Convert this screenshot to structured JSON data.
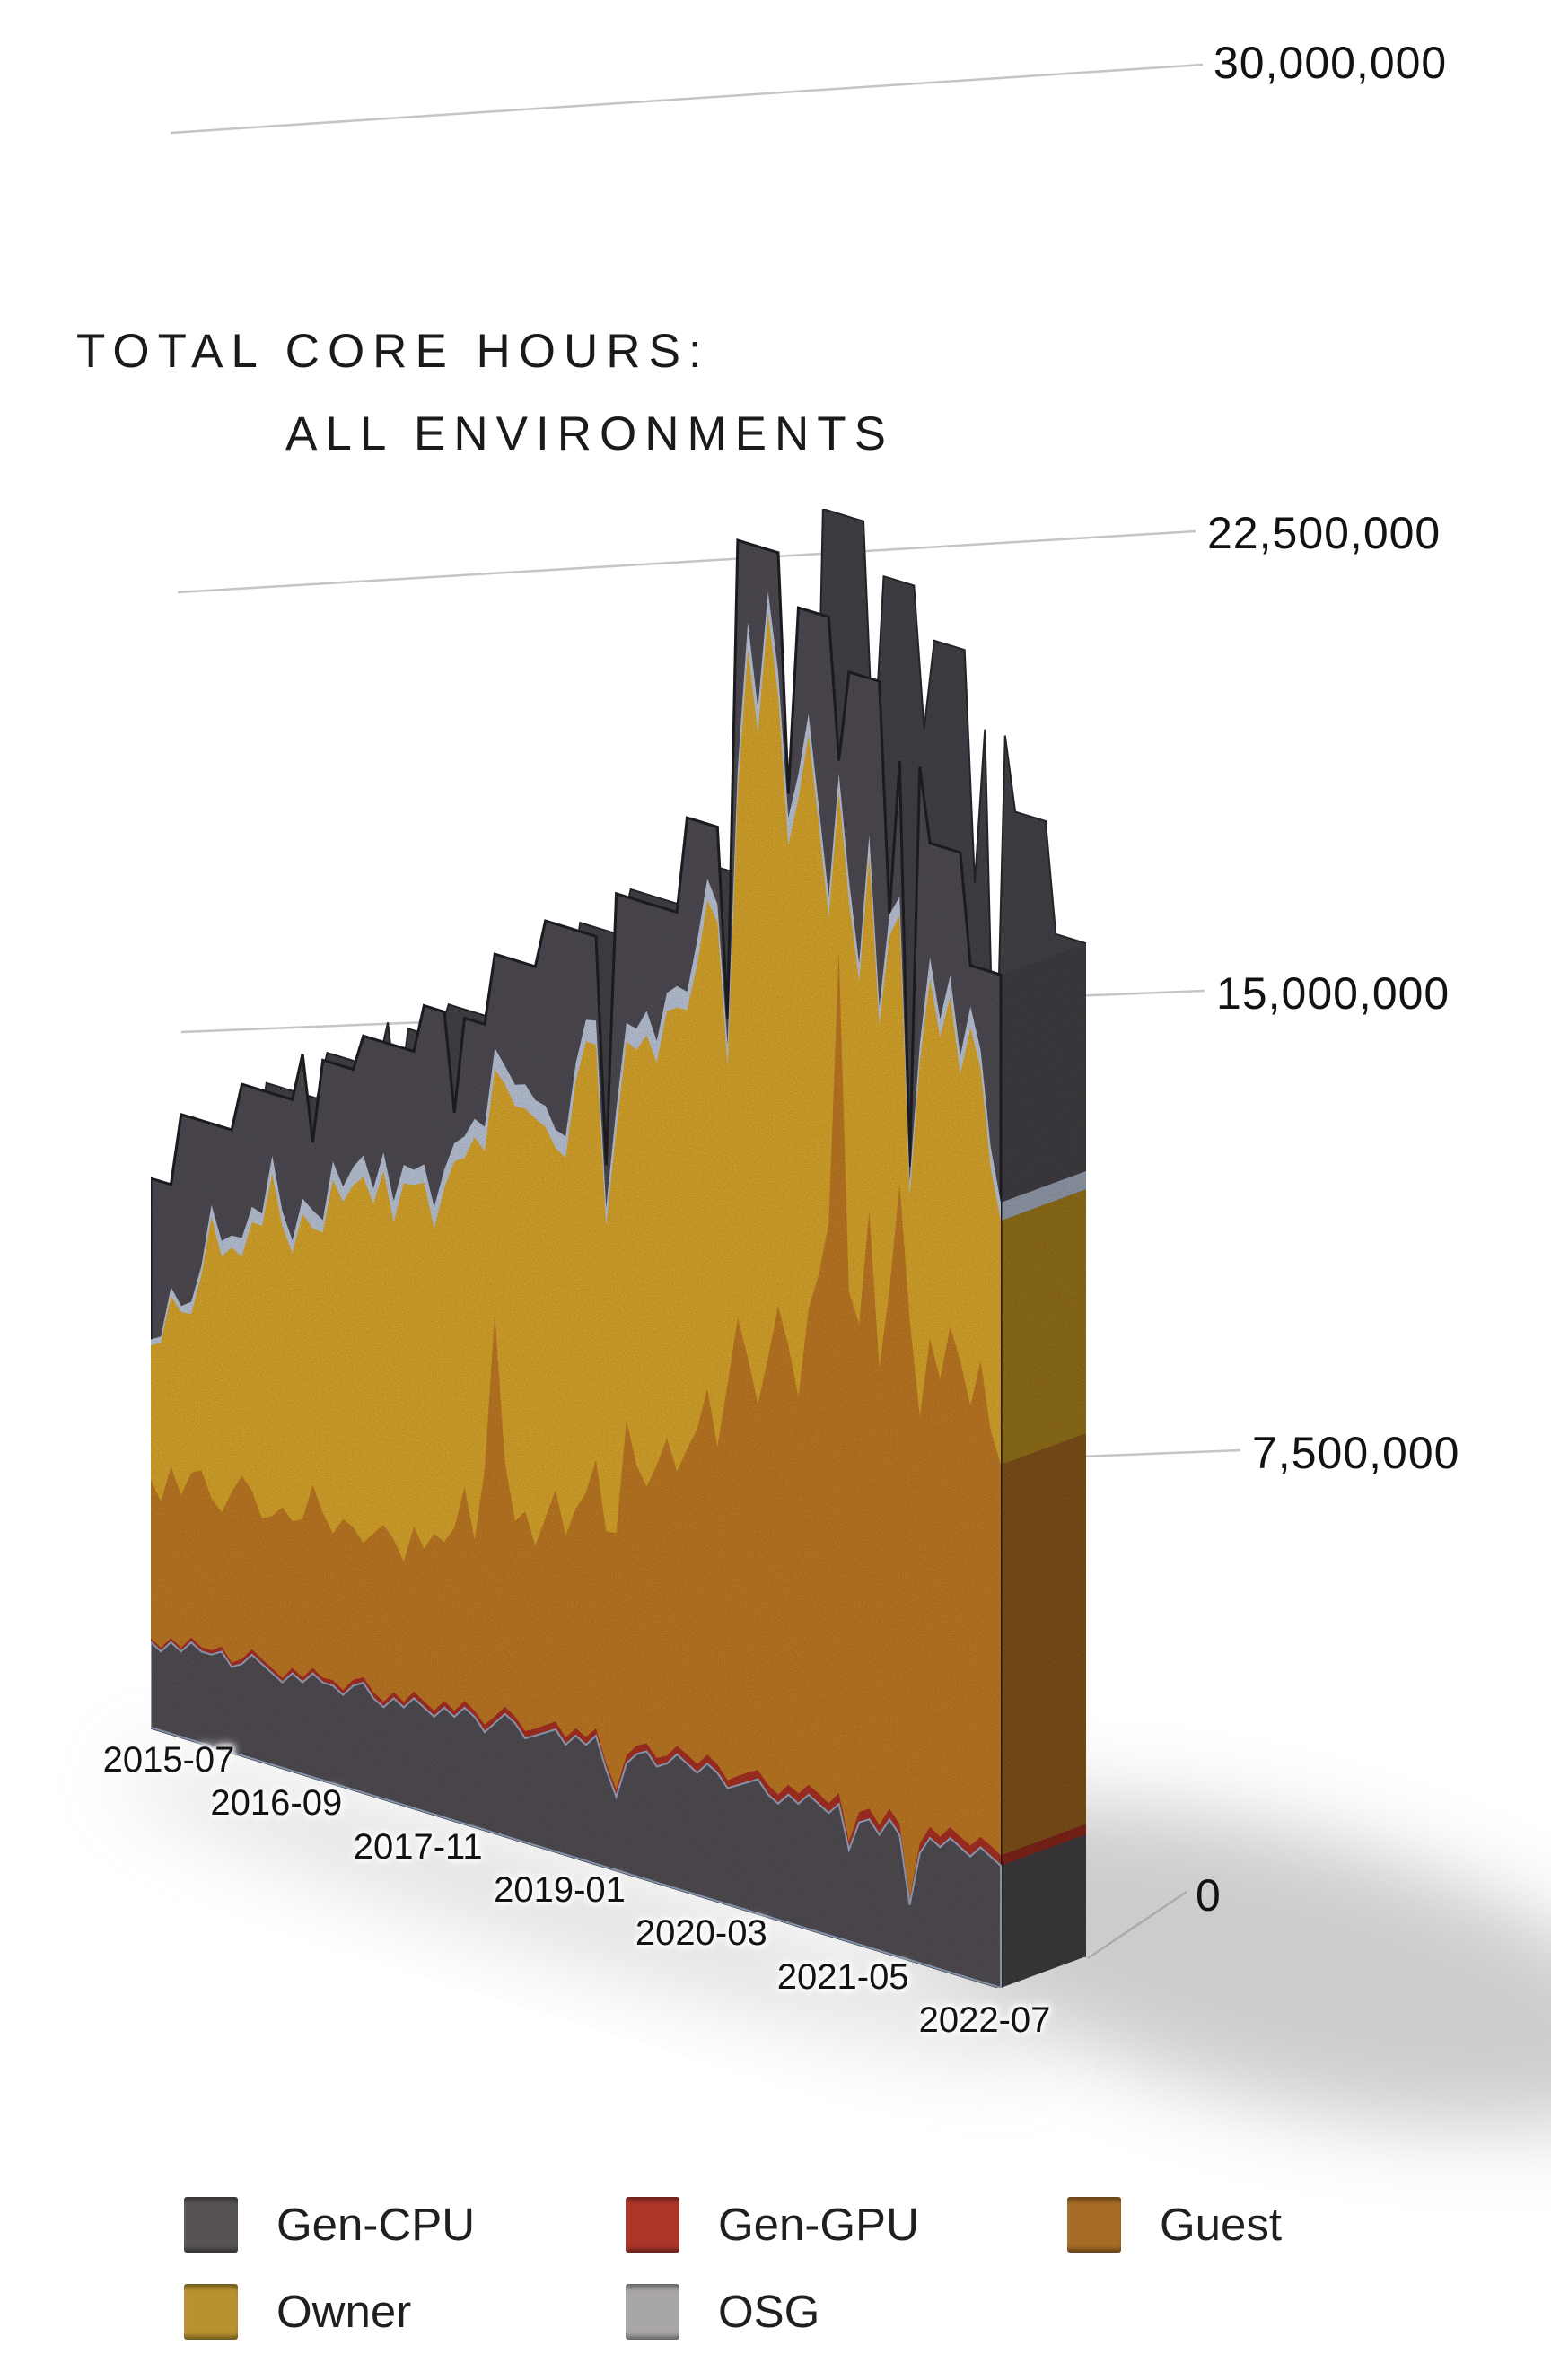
{
  "title": {
    "line1": "TOTAL CORE HOURS:",
    "line2": "ALL ENVIRONMENTS"
  },
  "y_axis": {
    "unit": "core hours",
    "tick_labels": [
      "30,000,000",
      "22,500,000",
      "15,000,000",
      "7,500,000",
      "0"
    ],
    "tick_values": [
      30000000,
      22500000,
      15000000,
      7500000,
      0
    ]
  },
  "x_axis": {
    "tick_labels": [
      "2015-07",
      "2016-09",
      "2017-11",
      "2019-01",
      "2020-03",
      "2021-05",
      "2022-07"
    ]
  },
  "legend": {
    "items": [
      {
        "label": "Gen-CPU",
        "color": "#565256"
      },
      {
        "label": "Gen-GPU",
        "color": "#AC352A"
      },
      {
        "label": "Guest",
        "color": "#A66C26"
      },
      {
        "label": "Owner",
        "color": "#B8922C"
      },
      {
        "label": "OSG",
        "color": "#A9A6A7"
      }
    ]
  },
  "chart_data": {
    "type": "area",
    "subtype": "stacked-3d-perspective",
    "title": "TOTAL CORE HOURS: ALL ENVIRONMENTS",
    "x_start": "2015-07",
    "x_end": "2022-07",
    "x_step_months": 1,
    "x_tick_labels": [
      "2015-07",
      "2016-09",
      "2017-11",
      "2019-01",
      "2020-03",
      "2021-05",
      "2022-07"
    ],
    "x_tick_month_index": [
      0,
      14,
      28,
      42,
      56,
      70,
      84
    ],
    "values_unit": "millions of core hours per month",
    "ylim": [
      0,
      30000000
    ],
    "y_ticks": [
      0,
      7500000,
      15000000,
      22500000,
      30000000
    ],
    "grid": "perspective gridlines, labels on right",
    "legend_position": "bottom-left, two rows",
    "stack_order_bottom_to_top": [
      "Gen-CPU",
      "Gen-GPU",
      "Guest",
      "Owner",
      "OSG"
    ],
    "series": [
      {
        "name": "Gen-CPU",
        "color": "#514E52",
        "values": [
          1.4,
          1.3,
          1.5,
          1.4,
          1.6,
          1.5,
          1.5,
          1.6,
          1.4,
          1.5,
          1.7,
          1.6,
          1.5,
          1.4,
          1.6,
          1.5,
          1.7,
          1.6,
          1.6,
          1.5,
          1.7,
          1.8,
          1.6,
          1.5,
          1.7,
          1.6,
          1.8,
          1.7,
          1.6,
          1.8,
          1.7,
          1.9,
          1.8,
          1.6,
          1.8,
          2.0,
          1.9,
          1.7,
          1.8,
          1.9,
          2.0,
          1.8,
          2.0,
          1.9,
          2.1,
          1.6,
          1.2,
          1.8,
          2.0,
          2.1,
          1.9,
          2.0,
          2.2,
          2.1,
          2.0,
          2.2,
          2.1,
          1.9,
          2.0,
          2.1,
          2.2,
          2.0,
          1.9,
          2.1,
          2.0,
          2.2,
          2.1,
          2.0,
          2.2,
          1.5,
          2.0,
          2.1,
          1.9,
          2.2,
          2.0,
          0.9,
          1.8,
          2.1,
          2.0,
          2.2,
          2.1,
          2.0,
          2.2,
          2.1,
          2.0
        ]
      },
      {
        "name": "Gen-GPU",
        "color": "#A63125",
        "values": [
          0.06,
          0.06,
          0.07,
          0.06,
          0.08,
          0.07,
          0.07,
          0.08,
          0.07,
          0.08,
          0.09,
          0.08,
          0.08,
          0.07,
          0.09,
          0.08,
          0.09,
          0.08,
          0.09,
          0.08,
          0.1,
          0.09,
          0.1,
          0.09,
          0.1,
          0.09,
          0.11,
          0.1,
          0.1,
          0.11,
          0.1,
          0.11,
          0.1,
          0.12,
          0.11,
          0.12,
          0.11,
          0.12,
          0.11,
          0.12,
          0.13,
          0.12,
          0.12,
          0.13,
          0.12,
          0.1,
          0.12,
          0.13,
          0.14,
          0.13,
          0.14,
          0.13,
          0.14,
          0.15,
          0.14,
          0.15,
          0.14,
          0.13,
          0.15,
          0.16,
          0.15,
          0.16,
          0.15,
          0.16,
          0.17,
          0.16,
          0.17,
          0.16,
          0.18,
          0.14,
          0.17,
          0.18,
          0.16,
          0.18,
          0.17,
          0.1,
          0.16,
          0.18,
          0.17,
          0.18,
          0.17,
          0.18,
          0.17,
          0.18,
          0.17
        ]
      },
      {
        "name": "Guest",
        "color": "#BD7827",
        "values": [
          2.6,
          2.4,
          2.8,
          2.5,
          2.7,
          2.9,
          2.5,
          2.2,
          2.8,
          3.0,
          2.6,
          2.3,
          2.5,
          2.8,
          2.4,
          2.6,
          3.0,
          2.7,
          2.4,
          2.8,
          2.5,
          2.2,
          2.6,
          2.9,
          2.5,
          2.3,
          2.7,
          2.5,
          2.9,
          2.6,
          3.0,
          3.5,
          2.8,
          4.2,
          6.6,
          4.0,
          3.2,
          3.6,
          3.0,
          3.4,
          3.8,
          3.3,
          3.6,
          4.0,
          4.4,
          3.8,
          4.2,
          5.5,
          4.6,
          4.2,
          4.8,
          5.2,
          4.5,
          5.0,
          5.5,
          6.0,
          5.2,
          6.5,
          7.5,
          6.8,
          6.0,
          7.0,
          8.0,
          7.2,
          6.5,
          7.8,
          8.5,
          9.5,
          13.8,
          9.0,
          8.0,
          9.8,
          7.5,
          8.5,
          10.5,
          9.5,
          7.0,
          8.0,
          7.5,
          8.2,
          7.8,
          7.2,
          7.8,
          6.8,
          6.4
        ]
      },
      {
        "name": "Owner",
        "color": "#D6A42F",
        "values": [
          2.2,
          2.6,
          2.8,
          3.0,
          2.6,
          3.2,
          4.6,
          4.2,
          4.0,
          3.6,
          4.4,
          4.8,
          5.6,
          4.6,
          4.4,
          5.0,
          4.2,
          4.6,
          5.8,
          5.2,
          5.6,
          6.0,
          5.4,
          5.8,
          5.2,
          6.2,
          5.6,
          6.0,
          5.0,
          5.8,
          6.0,
          5.4,
          6.6,
          5.2,
          4.0,
          6.2,
          6.8,
          6.6,
          7.0,
          6.4,
          5.6,
          6.2,
          7.0,
          7.4,
          6.8,
          5.0,
          6.6,
          6.2,
          6.8,
          7.4,
          6.6,
          7.0,
          7.6,
          7.2,
          7.6,
          8.0,
          8.6,
          5.2,
          8.6,
          11.6,
          11.0,
          12.2,
          10.0,
          8.2,
          9.8,
          9.4,
          7.4,
          5.0,
          2.6,
          6.4,
          5.6,
          5.8,
          5.6,
          5.8,
          4.4,
          2.0,
          5.8,
          5.9,
          5.6,
          5.4,
          4.7,
          6.2,
          4.8,
          4.3,
          4.0
        ]
      },
      {
        "name": "OSG",
        "color": "#B9C3D6",
        "values": [
          0.1,
          0.1,
          0.15,
          0.1,
          0.2,
          0.15,
          0.2,
          0.25,
          0.2,
          0.3,
          0.25,
          0.2,
          0.3,
          0.25,
          0.2,
          0.25,
          0.3,
          0.2,
          0.3,
          0.25,
          0.3,
          0.35,
          0.25,
          0.3,
          0.35,
          0.3,
          0.25,
          0.3,
          0.35,
          0.3,
          0.3,
          0.35,
          0.3,
          0.4,
          0.35,
          0.3,
          0.35,
          0.4,
          0.3,
          0.35,
          0.3,
          0.35,
          0.3,
          0.35,
          0.4,
          0.3,
          0.35,
          0.3,
          0.35,
          0.4,
          0.35,
          0.3,
          0.35,
          0.3,
          0.4,
          0.35,
          0.3,
          0.35,
          0.4,
          0.45,
          0.4,
          0.35,
          0.4,
          0.45,
          0.4,
          0.35,
          0.3,
          0.35,
          0.3,
          0.35,
          0.3,
          0.35,
          0.3,
          0.35,
          0.3,
          0.25,
          0.3,
          0.35,
          0.3,
          0.35,
          0.3,
          0.35,
          0.3,
          0.35,
          0.3
        ]
      }
    ],
    "capacity_outline": {
      "name": "capacity silhouette (dark-gray band rendered above the stack)",
      "color": "#4F4C52",
      "values": [
        9.0,
        9.0,
        9.0,
        10.2,
        10.2,
        10.2,
        10.2,
        10.2,
        10.2,
        11.0,
        11.0,
        11.0,
        11.0,
        11.0,
        11.0,
        11.8,
        10.4,
        11.8,
        11.8,
        11.8,
        11.8,
        12.4,
        12.4,
        12.4,
        12.4,
        12.4,
        12.4,
        13.2,
        13.2,
        13.2,
        11.6,
        13.2,
        13.2,
        13.2,
        14.4,
        14.4,
        14.4,
        14.4,
        14.4,
        15.2,
        15.2,
        15.2,
        15.2,
        15.2,
        15.2,
        11.5,
        16.0,
        16.0,
        16.0,
        16.0,
        16.0,
        16.0,
        16.0,
        17.6,
        17.6,
        17.6,
        17.6,
        14.5,
        22.4,
        22.4,
        22.4,
        22.4,
        22.4,
        18.5,
        21.6,
        21.6,
        21.6,
        21.6,
        19.3,
        20.8,
        20.8,
        20.8,
        20.8,
        17.0,
        19.6,
        13.0,
        19.6,
        18.4,
        18.4,
        18.4,
        18.4,
        16.6,
        16.6,
        16.6,
        16.6
      ]
    }
  }
}
